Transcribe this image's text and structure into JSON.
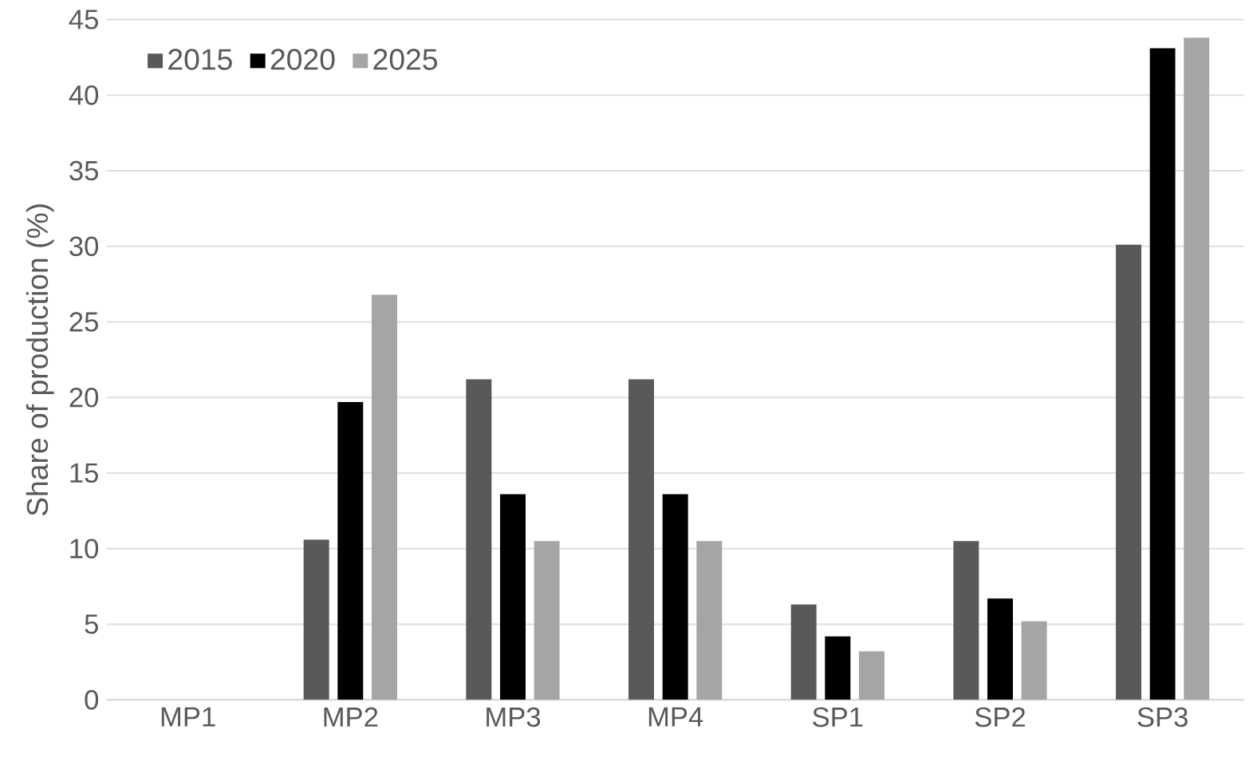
{
  "chart_data": {
    "type": "bar",
    "ylabel": "Share of production (%)",
    "categories": [
      "MP1",
      "MP2",
      "MP3",
      "MP4",
      "SP1",
      "SP2",
      "SP3"
    ],
    "series": [
      {
        "name": "2015",
        "color": "#595959",
        "values": [
          0,
          10.6,
          21.2,
          21.2,
          6.3,
          10.5,
          30.1
        ]
      },
      {
        "name": "2020",
        "color": "#000000",
        "values": [
          0,
          19.7,
          13.6,
          13.6,
          4.2,
          6.7,
          43.1
        ]
      },
      {
        "name": "2025",
        "color": "#a5a5a5",
        "values": [
          0,
          26.8,
          10.5,
          10.5,
          3.2,
          5.2,
          43.8
        ]
      }
    ],
    "ylim": [
      0,
      45
    ],
    "yticks": [
      0,
      5,
      10,
      15,
      20,
      25,
      30,
      35,
      40,
      45
    ],
    "grid": "y",
    "legend": "top left"
  }
}
